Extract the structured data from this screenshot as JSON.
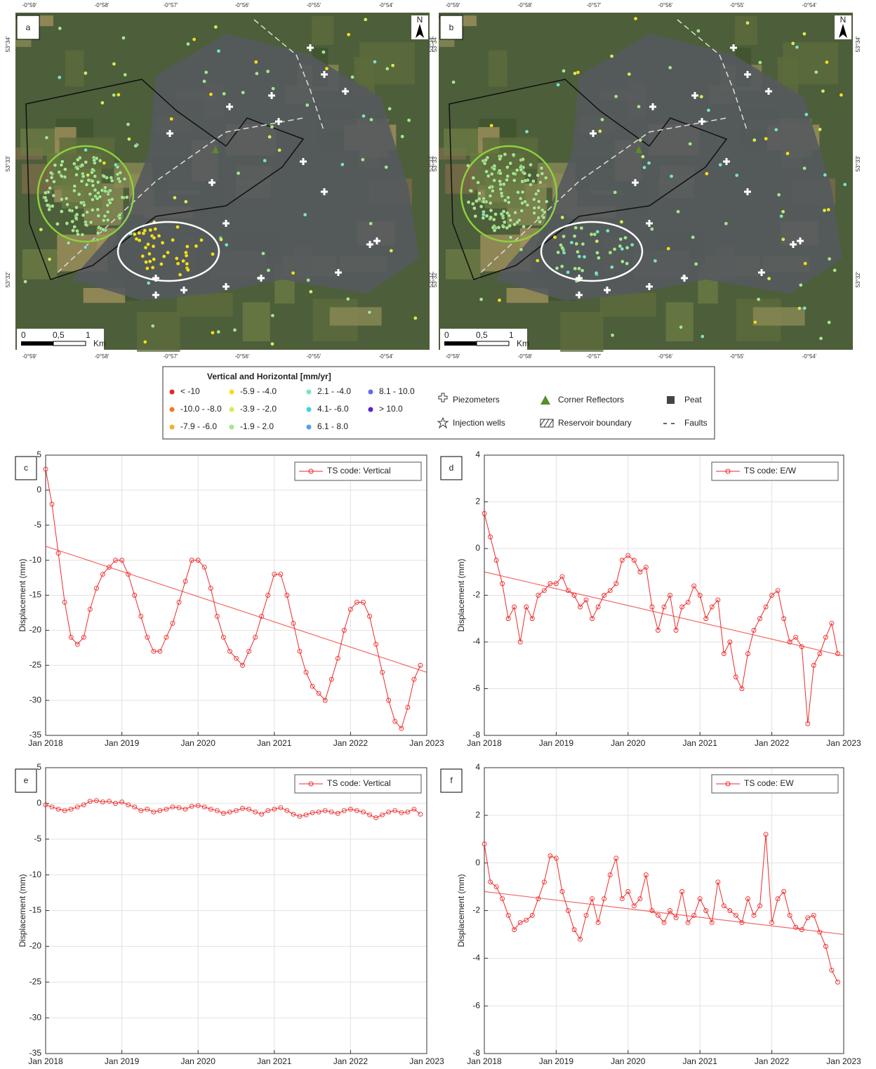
{
  "maps": [
    {
      "label": "a",
      "north": "N",
      "lon_ticks": [
        "-0°59'",
        "-0°58'",
        "-0°57'",
        "-0°56'",
        "-0°55'",
        "-0°54'"
      ],
      "lat_ticks": [
        "53°34'",
        "53°33'",
        "53°32'"
      ],
      "scale": [
        "0",
        "0,5",
        "1",
        "Km"
      ]
    },
    {
      "label": "b",
      "north": "N",
      "lon_ticks": [
        "-0°59'",
        "-0°58'",
        "-0°57'",
        "-0°56'",
        "-0°55'",
        "-0°54'"
      ],
      "lat_ticks": [
        "53°34'",
        "53°33'",
        "53°32'"
      ],
      "scale": [
        "0",
        "0,5",
        "1",
        "Km"
      ]
    }
  ],
  "legend": {
    "title": "Vertical and Horizontal [mm/yr]",
    "classes": [
      {
        "label": "< -10",
        "color": "#e8261c"
      },
      {
        "label": "-10.0 - -8.0",
        "color": "#f5781e"
      },
      {
        "label": "-7.9 - -6.0",
        "color": "#f7ae2c"
      },
      {
        "label": "-5.9 - -4.0",
        "color": "#f2df1f"
      },
      {
        "label": "-3.9 - -2.0",
        "color": "#d4ec5a"
      },
      {
        "label": "-1.9 - 2.0",
        "color": "#a6e68c"
      },
      {
        "label": "2.1 - -4.0",
        "color": "#7de3c3"
      },
      {
        "label": "4.1- -6.0",
        "color": "#3fd0e6"
      },
      {
        "label": "6.1 - 8.0",
        "color": "#4fa3ee"
      },
      {
        "label": "8.1 - 10.0",
        "color": "#6a6ae8"
      },
      {
        "label": "> 10.0",
        "color": "#5a1fd6"
      }
    ],
    "symbols": [
      "Piezometers",
      "Injection wells",
      "Corner Reflectors",
      "Reservoir boundary",
      "Peat",
      "Faults"
    ]
  },
  "chart_data": [
    {
      "type": "line",
      "label": "c",
      "ylabel": "Displacement (mm)",
      "legend": "upper right",
      "grid": true,
      "xlim": [
        "2018-01",
        "2023-01"
      ],
      "ylim": [
        -35,
        5
      ],
      "yticks": [
        5,
        0,
        -5,
        -10,
        -15,
        -20,
        -25,
        -30,
        -35
      ],
      "xticks": [
        {
          "value": "2018-01",
          "label": "Jan 2018"
        },
        {
          "value": "2019-01",
          "label": "Jan 2019"
        },
        {
          "value": "2020-01",
          "label": "Jan 2020"
        },
        {
          "value": "2021-01",
          "label": "Jan 2021"
        },
        {
          "value": "2022-01",
          "label": "Jan 2022"
        },
        {
          "value": "2023-01",
          "label": "Jan 2023"
        }
      ],
      "x": [
        "2018-01",
        "2018-02",
        "2018-03",
        "2018-04",
        "2018-05",
        "2018-06",
        "2018-07",
        "2018-08",
        "2018-09",
        "2018-10",
        "2018-11",
        "2018-12",
        "2019-01",
        "2019-02",
        "2019-03",
        "2019-04",
        "2019-05",
        "2019-06",
        "2019-07",
        "2019-08",
        "2019-09",
        "2019-10",
        "2019-11",
        "2019-12",
        "2020-01",
        "2020-02",
        "2020-03",
        "2020-04",
        "2020-05",
        "2020-06",
        "2020-07",
        "2020-08",
        "2020-09",
        "2020-10",
        "2020-11",
        "2020-12",
        "2021-01",
        "2021-02",
        "2021-03",
        "2021-04",
        "2021-05",
        "2021-06",
        "2021-07",
        "2021-08",
        "2021-09",
        "2021-10",
        "2021-11",
        "2021-12",
        "2022-01",
        "2022-02",
        "2022-03",
        "2022-04",
        "2022-05",
        "2022-06",
        "2022-07",
        "2022-08",
        "2022-09",
        "2022-10",
        "2022-11",
        "2022-12"
      ],
      "series": [
        {
          "name": "TS code: Vertical",
          "color": "#ee2a2a",
          "values": [
            3,
            -2,
            -9,
            -16,
            -21,
            -22,
            -21,
            -17,
            -14,
            -12,
            -11,
            -10,
            -10,
            -12,
            -15,
            -18,
            -21,
            -23,
            -23,
            -21,
            -19,
            -16,
            -13,
            -10,
            -10,
            -11,
            -14,
            -18,
            -21,
            -23,
            -24,
            -25,
            -23,
            -21,
            -18,
            -15,
            -12,
            -12,
            -15,
            -19,
            -23,
            -26,
            -28,
            -29,
            -30,
            -27,
            -24,
            -20,
            -17,
            -16,
            -16,
            -18,
            -22,
            -26,
            -30,
            -33,
            -34,
            -31,
            -27,
            -25
          ]
        }
      ],
      "trend": {
        "x": [
          "2018-01",
          "2023-01"
        ],
        "values": [
          -8,
          -26
        ]
      }
    },
    {
      "type": "line",
      "label": "d",
      "ylabel": "Displacement (mm)",
      "legend": "upper right",
      "grid": true,
      "xlim": [
        "2018-01",
        "2023-01"
      ],
      "ylim": [
        -8,
        4
      ],
      "yticks": [
        4,
        2,
        0,
        -2,
        -4,
        -6,
        -8
      ],
      "xticks": [
        {
          "value": "2018-01",
          "label": "Jan 2018"
        },
        {
          "value": "2019-01",
          "label": "Jan 2019"
        },
        {
          "value": "2020-01",
          "label": "Jan 2020"
        },
        {
          "value": "2021-01",
          "label": "Jan 2021"
        },
        {
          "value": "2022-01",
          "label": "Jan 2022"
        },
        {
          "value": "2023-01",
          "label": "Jan 2023"
        }
      ],
      "x": [
        "2018-01",
        "2018-02",
        "2018-03",
        "2018-04",
        "2018-05",
        "2018-06",
        "2018-07",
        "2018-08",
        "2018-09",
        "2018-10",
        "2018-11",
        "2018-12",
        "2019-01",
        "2019-02",
        "2019-03",
        "2019-04",
        "2019-05",
        "2019-06",
        "2019-07",
        "2019-08",
        "2019-09",
        "2019-10",
        "2019-11",
        "2019-12",
        "2020-01",
        "2020-02",
        "2020-03",
        "2020-04",
        "2020-05",
        "2020-06",
        "2020-07",
        "2020-08",
        "2020-09",
        "2020-10",
        "2020-11",
        "2020-12",
        "2021-01",
        "2021-02",
        "2021-03",
        "2021-04",
        "2021-05",
        "2021-06",
        "2021-07",
        "2021-08",
        "2021-09",
        "2021-10",
        "2021-11",
        "2021-12",
        "2022-01",
        "2022-02",
        "2022-03",
        "2022-04",
        "2022-05",
        "2022-06",
        "2022-07",
        "2022-08",
        "2022-09",
        "2022-10",
        "2022-11",
        "2022-12"
      ],
      "series": [
        {
          "name": "TS code: E/W",
          "color": "#ee2a2a",
          "values": [
            1.5,
            0.5,
            -0.5,
            -1.5,
            -3,
            -2.5,
            -4,
            -2.5,
            -3,
            -2,
            -1.8,
            -1.5,
            -1.5,
            -1.2,
            -1.8,
            -2,
            -2.5,
            -2.2,
            -3,
            -2.5,
            -2,
            -1.8,
            -1.5,
            -0.5,
            -0.3,
            -0.5,
            -1,
            -0.8,
            -2.5,
            -3.5,
            -2.5,
            -2,
            -3.5,
            -2.5,
            -2.3,
            -1.6,
            -2,
            -3,
            -2.5,
            -2.2,
            -4.5,
            -4,
            -5.5,
            -6,
            -4.5,
            -3.5,
            -3,
            -2.5,
            -2,
            -1.8,
            -3,
            -4,
            -3.8,
            -4.2,
            -7.5,
            -5,
            -4.5,
            -3.8,
            -3.2,
            -4.5
          ]
        }
      ],
      "trend": {
        "x": [
          "2018-01",
          "2023-01"
        ],
        "values": [
          -1,
          -4.6
        ]
      }
    },
    {
      "type": "line",
      "label": "e",
      "ylabel": "Displacement (mm)",
      "legend": "upper right",
      "grid": true,
      "xlim": [
        "2018-01",
        "2023-01"
      ],
      "ylim": [
        -35,
        5
      ],
      "yticks": [
        5,
        0,
        -5,
        -10,
        -15,
        -20,
        -25,
        -30,
        -35
      ],
      "xticks": [
        {
          "value": "2018-01",
          "label": "Jan 2018"
        },
        {
          "value": "2019-01",
          "label": "Jan 2019"
        },
        {
          "value": "2020-01",
          "label": "Jan 2020"
        },
        {
          "value": "2021-01",
          "label": "Jan 2021"
        },
        {
          "value": "2022-01",
          "label": "Jan 2022"
        },
        {
          "value": "2023-01",
          "label": "Jan 2023"
        }
      ],
      "x": [
        "2018-01",
        "2018-02",
        "2018-03",
        "2018-04",
        "2018-05",
        "2018-06",
        "2018-07",
        "2018-08",
        "2018-09",
        "2018-10",
        "2018-11",
        "2018-12",
        "2019-01",
        "2019-02",
        "2019-03",
        "2019-04",
        "2019-05",
        "2019-06",
        "2019-07",
        "2019-08",
        "2019-09",
        "2019-10",
        "2019-11",
        "2019-12",
        "2020-01",
        "2020-02",
        "2020-03",
        "2020-04",
        "2020-05",
        "2020-06",
        "2020-07",
        "2020-08",
        "2020-09",
        "2020-10",
        "2020-11",
        "2020-12",
        "2021-01",
        "2021-02",
        "2021-03",
        "2021-04",
        "2021-05",
        "2021-06",
        "2021-07",
        "2021-08",
        "2021-09",
        "2021-10",
        "2021-11",
        "2021-12",
        "2022-01",
        "2022-02",
        "2022-03",
        "2022-04",
        "2022-05",
        "2022-06",
        "2022-07",
        "2022-08",
        "2022-09",
        "2022-10",
        "2022-11",
        "2022-12"
      ],
      "series": [
        {
          "name": "TS code: Vertical",
          "color": "#ee2a2a",
          "values": [
            -0.2,
            -0.5,
            -0.8,
            -1,
            -0.8,
            -0.5,
            -0.2,
            0.3,
            0.4,
            0.2,
            0.3,
            0,
            0.2,
            -0.2,
            -0.5,
            -1,
            -0.8,
            -1.2,
            -1,
            -0.8,
            -0.5,
            -0.6,
            -0.8,
            -0.4,
            -0.3,
            -0.5,
            -0.8,
            -1,
            -1.4,
            -1.2,
            -1,
            -0.7,
            -0.8,
            -1.2,
            -1.5,
            -1,
            -0.8,
            -0.6,
            -1,
            -1.5,
            -1.8,
            -1.6,
            -1.3,
            -1.2,
            -1,
            -1.2,
            -1.4,
            -1,
            -0.8,
            -1,
            -1.2,
            -1.6,
            -2,
            -1.6,
            -1.2,
            -1,
            -1.3,
            -1.2,
            -0.8,
            -1.5
          ]
        }
      ]
    },
    {
      "type": "line",
      "label": "f",
      "ylabel": "Displacement (mm)",
      "legend": "upper right",
      "grid": true,
      "xlim": [
        "2018-01",
        "2023-01"
      ],
      "ylim": [
        -8,
        4
      ],
      "yticks": [
        4,
        2,
        0,
        -2,
        -4,
        -6,
        -8
      ],
      "xticks": [
        {
          "value": "2018-01",
          "label": "Jan 2018"
        },
        {
          "value": "2019-01",
          "label": "Jan 2019"
        },
        {
          "value": "2020-01",
          "label": "Jan 2020"
        },
        {
          "value": "2021-01",
          "label": "Jan 2021"
        },
        {
          "value": "2022-01",
          "label": "Jan 2022"
        },
        {
          "value": "2023-01",
          "label": "Jan 2023"
        }
      ],
      "x": [
        "2018-01",
        "2018-02",
        "2018-03",
        "2018-04",
        "2018-05",
        "2018-06",
        "2018-07",
        "2018-08",
        "2018-09",
        "2018-10",
        "2018-11",
        "2018-12",
        "2019-01",
        "2019-02",
        "2019-03",
        "2019-04",
        "2019-05",
        "2019-06",
        "2019-07",
        "2019-08",
        "2019-09",
        "2019-10",
        "2019-11",
        "2019-12",
        "2020-01",
        "2020-02",
        "2020-03",
        "2020-04",
        "2020-05",
        "2020-06",
        "2020-07",
        "2020-08",
        "2020-09",
        "2020-10",
        "2020-11",
        "2020-12",
        "2021-01",
        "2021-02",
        "2021-03",
        "2021-04",
        "2021-05",
        "2021-06",
        "2021-07",
        "2021-08",
        "2021-09",
        "2021-10",
        "2021-11",
        "2021-12",
        "2022-01",
        "2022-02",
        "2022-03",
        "2022-04",
        "2022-05",
        "2022-06",
        "2022-07",
        "2022-08",
        "2022-09",
        "2022-10",
        "2022-11",
        "2022-12"
      ],
      "series": [
        {
          "name": "TS code: EW",
          "color": "#ee2a2a",
          "values": [
            0.8,
            -0.8,
            -1,
            -1.5,
            -2.2,
            -2.8,
            -2.5,
            -2.4,
            -2.2,
            -1.5,
            -0.8,
            0.3,
            0.2,
            -1.2,
            -2,
            -2.8,
            -3.2,
            -2.2,
            -1.5,
            -2.5,
            -1.5,
            -0.5,
            0.2,
            -1.5,
            -1.2,
            -1.8,
            -1.5,
            -0.5,
            -2,
            -2.2,
            -2.5,
            -2,
            -2.3,
            -1.2,
            -2.5,
            -2.2,
            -1.5,
            -2,
            -2.5,
            -0.8,
            -1.8,
            -2,
            -2.2,
            -2.5,
            -1.5,
            -2.2,
            -1.8,
            1.2,
            -2.5,
            -1.5,
            -1.2,
            -2.2,
            -2.7,
            -2.8,
            -2.3,
            -2.2,
            -2.9,
            -3.5,
            -4.5,
            -5
          ]
        }
      ],
      "trend": {
        "x": [
          "2018-01",
          "2023-01"
        ],
        "values": [
          -1.2,
          -3
        ]
      }
    }
  ]
}
